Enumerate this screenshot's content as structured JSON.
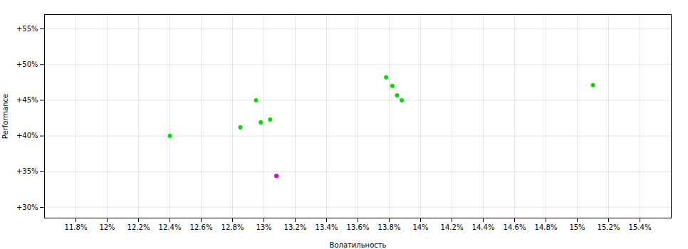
{
  "chart_data": {
    "type": "scatter",
    "xlabel": "Волатильность",
    "ylabel": "Performance",
    "xlim": [
      0.116,
      0.156
    ],
    "ylim": [
      0.285,
      0.57
    ],
    "xticks": [
      {
        "value": 0.118,
        "label": "11.8%"
      },
      {
        "value": 0.12,
        "label": "12%"
      },
      {
        "value": 0.122,
        "label": "12.2%"
      },
      {
        "value": 0.124,
        "label": "12.4%"
      },
      {
        "value": 0.126,
        "label": "12.6%"
      },
      {
        "value": 0.128,
        "label": "12.8%"
      },
      {
        "value": 0.13,
        "label": "13%"
      },
      {
        "value": 0.132,
        "label": "13.2%"
      },
      {
        "value": 0.134,
        "label": "13.4%"
      },
      {
        "value": 0.136,
        "label": "13.6%"
      },
      {
        "value": 0.138,
        "label": "13.8%"
      },
      {
        "value": 0.14,
        "label": "14%"
      },
      {
        "value": 0.142,
        "label": "14.2%"
      },
      {
        "value": 0.144,
        "label": "14.4%"
      },
      {
        "value": 0.146,
        "label": "14.6%"
      },
      {
        "value": 0.148,
        "label": "14.8%"
      },
      {
        "value": 0.15,
        "label": "15%"
      },
      {
        "value": 0.152,
        "label": "15.2%"
      },
      {
        "value": 0.154,
        "label": "15.4%"
      }
    ],
    "yticks": [
      {
        "value": 0.3,
        "label": "+30%"
      },
      {
        "value": 0.35,
        "label": "+35%"
      },
      {
        "value": 0.4,
        "label": "+40%"
      },
      {
        "value": 0.45,
        "label": "+45%"
      },
      {
        "value": 0.5,
        "label": "+50%"
      },
      {
        "value": 0.55,
        "label": "+55%"
      }
    ],
    "grid": true,
    "series": [
      {
        "color": "#00dd00",
        "marker": "circle",
        "x": [
          0.124,
          0.1285,
          0.1298,
          0.1304,
          0.1295,
          0.1378,
          0.1382,
          0.1385,
          0.1388,
          0.151
        ],
        "values": [
          0.4,
          0.412,
          0.419,
          0.423,
          0.45,
          0.482,
          0.47,
          0.457,
          0.45,
          0.471
        ]
      },
      {
        "color": "#dd00dd",
        "marker": "circle",
        "x": [
          0.1308
        ],
        "values": [
          0.344
        ]
      }
    ]
  }
}
